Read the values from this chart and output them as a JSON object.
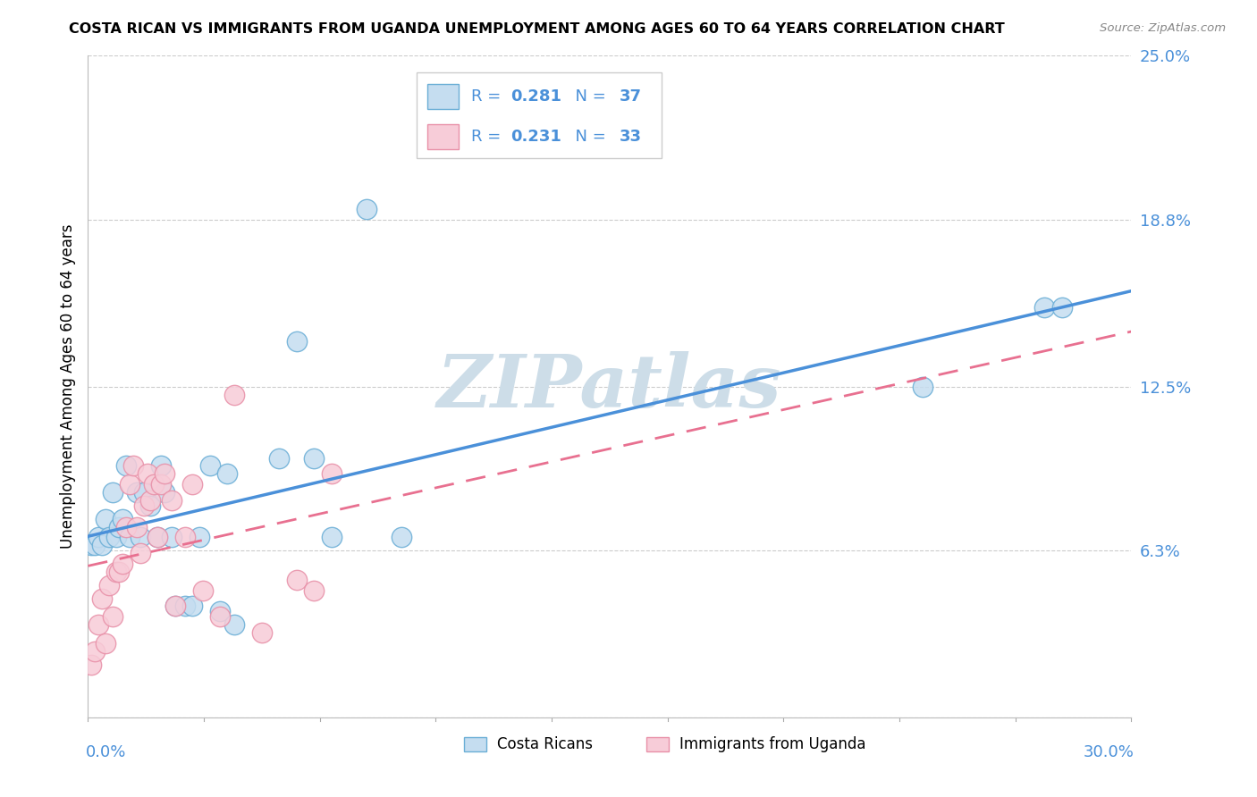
{
  "title": "COSTA RICAN VS IMMIGRANTS FROM UGANDA UNEMPLOYMENT AMONG AGES 60 TO 64 YEARS CORRELATION CHART",
  "source": "Source: ZipAtlas.com",
  "ylabel": "Unemployment Among Ages 60 to 64 years",
  "xlim": [
    0.0,
    0.3
  ],
  "ylim": [
    0.0,
    0.25
  ],
  "yticks": [
    0.0,
    0.063,
    0.125,
    0.188,
    0.25
  ],
  "ytick_labels": [
    "",
    "6.3%",
    "12.5%",
    "18.8%",
    "25.0%"
  ],
  "series1_label": "Costa Ricans",
  "series1_R": "0.281",
  "series1_N": "37",
  "series1_fill": "#c5ddf0",
  "series1_edge": "#6aaed6",
  "series1_line": "#4a90d9",
  "series2_label": "Immigrants from Uganda",
  "series2_R": "0.231",
  "series2_N": "33",
  "series2_fill": "#f7ccd8",
  "series2_edge": "#e890a8",
  "series2_line": "#e87090",
  "legend_text_color": "#4a90d9",
  "watermark": "ZIPatlas",
  "watermark_color": "#cddde8",
  "cr_x": [
    0.001,
    0.002,
    0.003,
    0.004,
    0.005,
    0.006,
    0.007,
    0.008,
    0.009,
    0.01,
    0.011,
    0.012,
    0.014,
    0.015,
    0.016,
    0.018,
    0.02,
    0.021,
    0.022,
    0.024,
    0.025,
    0.028,
    0.03,
    0.032,
    0.035,
    0.038,
    0.04,
    0.042,
    0.055,
    0.06,
    0.065,
    0.07,
    0.08,
    0.09,
    0.24,
    0.275,
    0.28
  ],
  "cr_y": [
    0.065,
    0.065,
    0.068,
    0.065,
    0.075,
    0.068,
    0.085,
    0.068,
    0.072,
    0.075,
    0.095,
    0.068,
    0.085,
    0.068,
    0.085,
    0.08,
    0.068,
    0.095,
    0.085,
    0.068,
    0.042,
    0.042,
    0.042,
    0.068,
    0.095,
    0.04,
    0.092,
    0.035,
    0.098,
    0.142,
    0.098,
    0.068,
    0.192,
    0.068,
    0.125,
    0.155,
    0.155
  ],
  "ug_x": [
    0.001,
    0.002,
    0.003,
    0.004,
    0.005,
    0.006,
    0.007,
    0.008,
    0.009,
    0.01,
    0.011,
    0.012,
    0.013,
    0.014,
    0.015,
    0.016,
    0.017,
    0.018,
    0.019,
    0.02,
    0.021,
    0.022,
    0.024,
    0.025,
    0.028,
    0.03,
    0.033,
    0.038,
    0.042,
    0.05,
    0.06,
    0.065,
    0.07
  ],
  "ug_y": [
    0.02,
    0.025,
    0.035,
    0.045,
    0.028,
    0.05,
    0.038,
    0.055,
    0.055,
    0.058,
    0.072,
    0.088,
    0.095,
    0.072,
    0.062,
    0.08,
    0.092,
    0.082,
    0.088,
    0.068,
    0.088,
    0.092,
    0.082,
    0.042,
    0.068,
    0.088,
    0.048,
    0.038,
    0.122,
    0.032,
    0.052,
    0.048,
    0.092
  ]
}
